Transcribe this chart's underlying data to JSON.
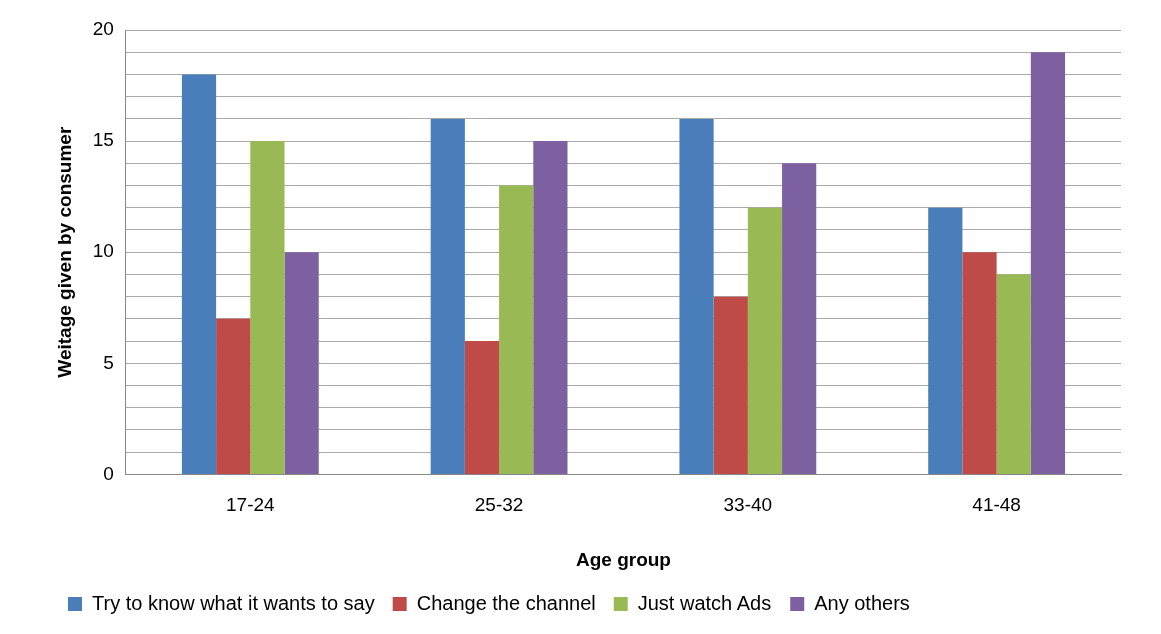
{
  "chart_data": {
    "type": "bar",
    "xlabel": "Age group",
    "ylabel": "Weitage given by consumer",
    "categories": [
      "17-24",
      "25-32",
      "33-40",
      "41-48"
    ],
    "series": [
      {
        "name": "Try to know what it wants to say",
        "color": "#4a7ebb",
        "values": [
          18,
          16,
          16,
          12
        ]
      },
      {
        "name": "Change the channel",
        "color": "#be4b48",
        "values": [
          7,
          6,
          8,
          10
        ]
      },
      {
        "name": "Just watch Ads",
        "color": "#98b954",
        "values": [
          15,
          13,
          12,
          9
        ]
      },
      {
        "name": "Any others",
        "color": "#7d60a0",
        "values": [
          10,
          15,
          14,
          19
        ]
      }
    ],
    "ylim": [
      0,
      20
    ],
    "yticks": [
      0,
      {
        "value": 1,
        "label": null
      },
      {
        "value": 2,
        "label": null
      },
      {
        "value": 3,
        "label": null
      },
      {
        "value": 4,
        "label": null
      },
      5,
      {
        "value": 6,
        "label": null
      },
      {
        "value": 7,
        "label": null
      },
      {
        "value": 8,
        "label": null
      },
      {
        "value": 9,
        "label": null
      },
      10,
      {
        "value": 11,
        "label": null
      },
      {
        "value": 12,
        "label": null
      },
      {
        "value": 13,
        "label": null
      },
      {
        "value": 14,
        "label": null
      },
      15,
      {
        "value": 16,
        "label": null
      },
      {
        "value": 17,
        "label": null
      },
      {
        "value": 18,
        "label": null
      },
      {
        "value": 19,
        "label": null
      },
      20
    ],
    "grid": "y",
    "legend": "bottom"
  }
}
